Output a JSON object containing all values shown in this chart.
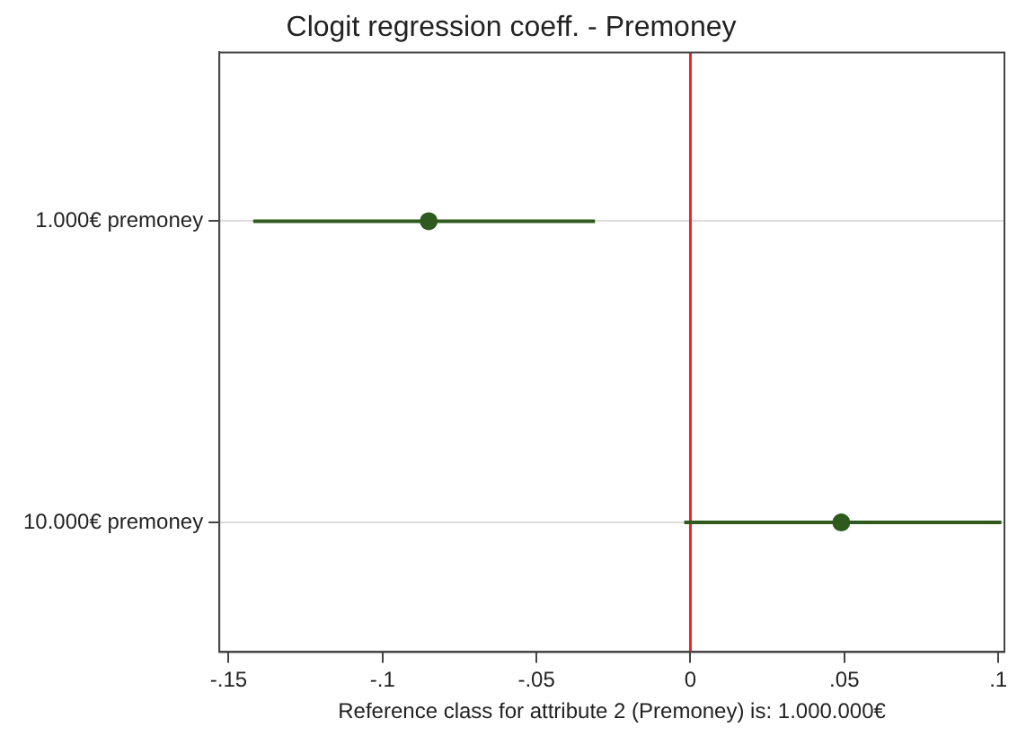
{
  "chart_data": {
    "type": "scatter",
    "title": "Clogit regression coeff. - Premoney",
    "xlabel": "Reference class for attribute 2 (Premoney) is: 1.000.000€",
    "orientation": "horizontal",
    "categories": [
      "1.000€ premoney",
      "10.000€ premoney"
    ],
    "values": [
      -0.085,
      0.049
    ],
    "errors": [
      [
        -0.142,
        -0.031
      ],
      [
        -0.002,
        0.101
      ]
    ],
    "color": "#2e5a1e",
    "xlim": [
      -0.153,
      0.102
    ],
    "xticks": [
      {
        "value": -0.15,
        "label": "-.15"
      },
      {
        "value": -0.1,
        "label": "-.1"
      },
      {
        "value": -0.05,
        "label": "-.05"
      },
      0,
      {
        "value": 0.05,
        "label": ".05"
      },
      {
        "value": 0.1,
        "label": ".1"
      }
    ],
    "ref_lines": [
      {
        "axis": "x",
        "value": 0,
        "color": "#e8262a"
      }
    ],
    "grid": "y",
    "marker": "circle",
    "legend": false
  }
}
